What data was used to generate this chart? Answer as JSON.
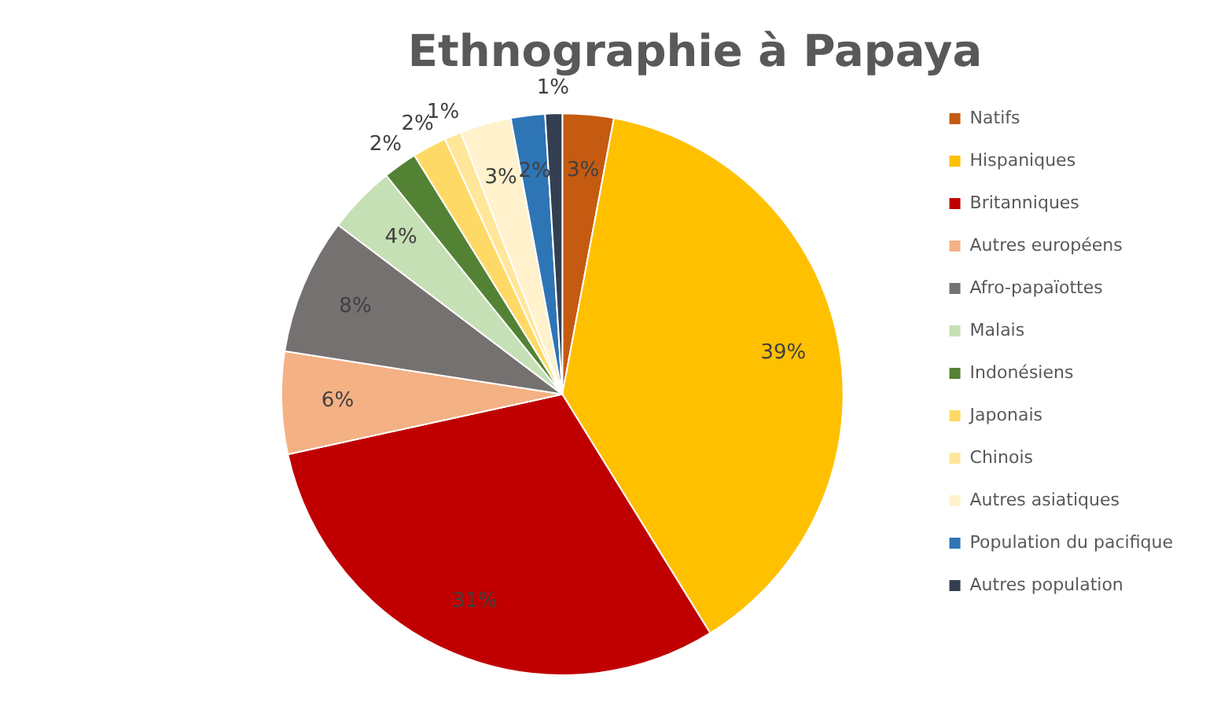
{
  "chart_data": {
    "type": "pie",
    "title": "Ethnographie à Papaya",
    "categories": [
      "Natifs",
      "Hispaniques",
      "Britanniques",
      "Autres européens",
      "Afro-papaïottes",
      "Malais",
      "Indonésiens",
      "Japonais",
      "Chinois",
      "Autres asiatiques",
      "Population du pacifique",
      "Autres population"
    ],
    "values": [
      3,
      39,
      31,
      6,
      8,
      4,
      2,
      2,
      1,
      3,
      2,
      1
    ],
    "value_labels": [
      "3%",
      "39%",
      "31%",
      "6%",
      "8%",
      "4%",
      "2%",
      "2%",
      "1%",
      "3%",
      "2%",
      "1%"
    ],
    "colors": [
      "#c55a11",
      "#ffc000",
      "#c00000",
      "#f4b183",
      "#767171",
      "#c5e0b4",
      "#548235",
      "#ffd966",
      "#ffe699",
      "#fff2cc",
      "#2e75b6",
      "#333f50"
    ],
    "legend": "right"
  }
}
